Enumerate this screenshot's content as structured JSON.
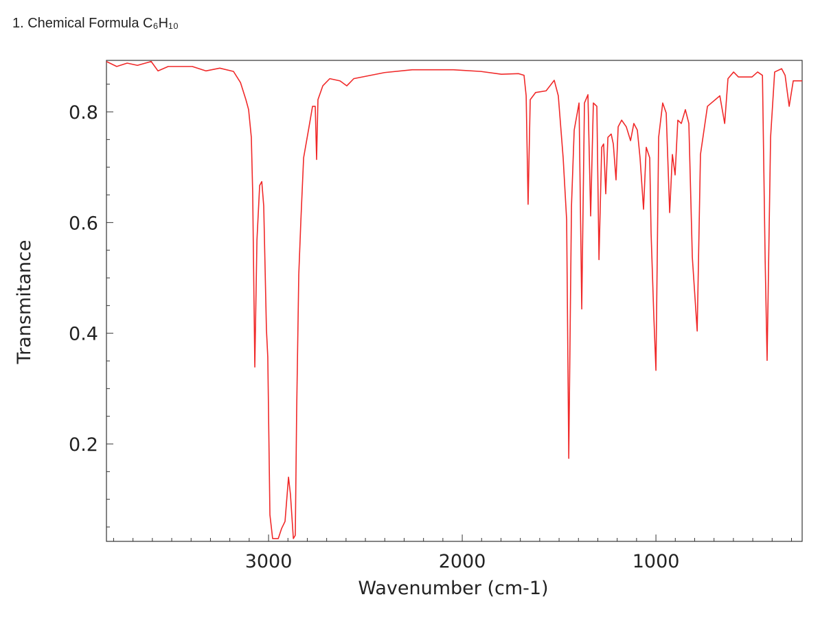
{
  "chart_data": {
    "type": "line",
    "title": "1. Chemical Formula C₆H₁₀",
    "x_label": "Wavenumber (cm-1)",
    "y_label": "Transmitance",
    "xlim": [
      3837,
      245
    ],
    "ylim": [
      0.024,
      0.893
    ],
    "xticks": [
      3000,
      2000,
      1000
    ],
    "yticks": [
      0.2,
      0.4,
      0.6,
      0.8
    ],
    "xticks_minor": [
      3800,
      3700,
      3600,
      3500,
      3400,
      3300,
      3200,
      3100,
      2900,
      2800,
      2700,
      2600,
      2500,
      2400,
      2300,
      2200,
      2100,
      1900,
      1800,
      1700,
      1600,
      1500,
      1400,
      1300,
      1200,
      1100,
      900,
      800,
      700,
      600,
      500,
      400,
      300
    ],
    "yticks_minor": [
      0.05,
      0.1,
      0.15,
      0.25,
      0.3,
      0.35,
      0.45,
      0.5,
      0.55,
      0.65,
      0.7,
      0.75,
      0.85
    ],
    "grid": false,
    "series": [
      {
        "name": "spectrum",
        "color": "#f02828",
        "x": [
          3837,
          3784,
          3730,
          3677,
          3606,
          3571,
          3518,
          3394,
          3323,
          3252,
          3181,
          3145,
          3117,
          3103,
          3089,
          3082,
          3071,
          3060,
          3046,
          3035,
          3025,
          3011,
          3004,
          2993,
          2979,
          2950,
          2933,
          2915,
          2897,
          2887,
          2872,
          2862,
          2855,
          2844,
          2833,
          2819,
          2791,
          2773,
          2759,
          2752,
          2745,
          2720,
          2684,
          2631,
          2596,
          2560,
          2401,
          2259,
          2046,
          1904,
          1798,
          1709,
          1681,
          1670,
          1660,
          1649,
          1621,
          1567,
          1525,
          1504,
          1479,
          1461,
          1450,
          1436,
          1422,
          1397,
          1383,
          1369,
          1351,
          1337,
          1323,
          1305,
          1294,
          1280,
          1270,
          1259,
          1248,
          1231,
          1220,
          1206,
          1195,
          1177,
          1153,
          1131,
          1114,
          1096,
          1082,
          1064,
          1050,
          1032,
          1025,
          1011,
          1000,
          986,
          965,
          947,
          929,
          915,
          901,
          887,
          869,
          848,
          830,
          812,
          787,
          770,
          734,
          670,
          645,
          628,
          599,
          574,
          504,
          475,
          450,
          436,
          426,
          408,
          387,
          351,
          333,
          312,
          291,
          245
        ],
        "values": [
          0.891,
          0.882,
          0.888,
          0.884,
          0.891,
          0.874,
          0.882,
          0.882,
          0.874,
          0.879,
          0.873,
          0.853,
          0.822,
          0.804,
          0.754,
          0.655,
          0.339,
          0.568,
          0.667,
          0.674,
          0.63,
          0.407,
          0.357,
          0.072,
          0.029,
          0.029,
          0.047,
          0.06,
          0.14,
          0.109,
          0.029,
          0.035,
          0.258,
          0.506,
          0.605,
          0.717,
          0.773,
          0.81,
          0.81,
          0.714,
          0.822,
          0.847,
          0.86,
          0.856,
          0.847,
          0.86,
          0.871,
          0.876,
          0.876,
          0.873,
          0.868,
          0.869,
          0.866,
          0.829,
          0.633,
          0.822,
          0.835,
          0.838,
          0.857,
          0.829,
          0.717,
          0.605,
          0.174,
          0.63,
          0.767,
          0.816,
          0.444,
          0.816,
          0.831,
          0.612,
          0.816,
          0.81,
          0.533,
          0.736,
          0.742,
          0.652,
          0.754,
          0.76,
          0.742,
          0.677,
          0.773,
          0.785,
          0.773,
          0.748,
          0.779,
          0.767,
          0.717,
          0.624,
          0.736,
          0.717,
          0.581,
          0.432,
          0.333,
          0.754,
          0.816,
          0.798,
          0.618,
          0.723,
          0.686,
          0.785,
          0.779,
          0.804,
          0.779,
          0.537,
          0.404,
          0.723,
          0.81,
          0.829,
          0.779,
          0.86,
          0.872,
          0.863,
          0.863,
          0.872,
          0.866,
          0.531,
          0.351,
          0.754,
          0.872,
          0.878,
          0.866,
          0.81,
          0.856,
          0.856
        ]
      }
    ]
  }
}
